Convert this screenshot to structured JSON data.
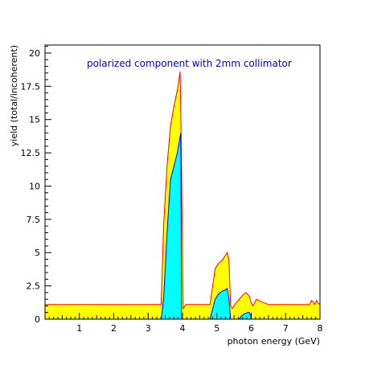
{
  "chart_data": {
    "type": "area",
    "title": "polarized component with 2mm collimator",
    "xlabel": "photon energy (GeV)",
    "ylabel": "yield (total/incoherent)",
    "xlim": [
      0,
      8
    ],
    "ylim": [
      0,
      20.6
    ],
    "x_ticks": [
      "1",
      "2",
      "3",
      "4",
      "5",
      "6",
      "7",
      "8"
    ],
    "y_ticks": [
      "0",
      "2.5",
      "5",
      "7.5",
      "10",
      "12.5",
      "15",
      "17.5",
      "20"
    ],
    "grid": false,
    "legend": "none",
    "colors": {
      "total_fill": "#ffff00",
      "total_edge": "#ff0000",
      "polarized_fill": "#00ffff",
      "polarized_edge": "#0000ff",
      "title": "#0000cc"
    },
    "series": [
      {
        "role": "total",
        "x": [
          0,
          3.38,
          3.45,
          3.55,
          3.65,
          3.75,
          3.85,
          3.93,
          3.96,
          4.02,
          4.1,
          4.8,
          4.85,
          4.95,
          5.05,
          5.15,
          5.25,
          5.3,
          5.35,
          5.4,
          5.45,
          5.5,
          5.55,
          5.65,
          5.75,
          5.85,
          5.95,
          6.0,
          6.05,
          6.15,
          6.3,
          6.5,
          7.7,
          7.75,
          7.8,
          7.85,
          7.9,
          7.95,
          8.0
        ],
        "y": [
          1.1,
          1.1,
          7.0,
          11.5,
          14.5,
          16.0,
          17.2,
          18.6,
          14.0,
          0.8,
          1.1,
          1.1,
          2.0,
          3.8,
          4.2,
          4.4,
          4.8,
          5.0,
          4.5,
          1.0,
          0.8,
          1.0,
          1.2,
          1.5,
          1.8,
          2.0,
          1.7,
          1.2,
          1.0,
          1.5,
          1.3,
          1.1,
          1.1,
          1.4,
          1.3,
          1.1,
          1.4,
          1.2,
          1.1
        ]
      },
      {
        "role": "polarized",
        "x": [
          0,
          3.38,
          3.45,
          3.55,
          3.65,
          3.75,
          3.85,
          3.95,
          3.97,
          4.1,
          4.8,
          4.85,
          4.95,
          5.05,
          5.15,
          5.25,
          5.3,
          5.35,
          5.4,
          5.65,
          5.7,
          5.8,
          5.9,
          5.95,
          6.0,
          6.3,
          8.0
        ],
        "y": [
          0,
          0,
          1.5,
          6.5,
          10.5,
          11.5,
          12.5,
          14.0,
          0.0,
          0,
          0,
          0.5,
          1.5,
          1.9,
          2.1,
          2.2,
          2.3,
          1.5,
          0.0,
          0,
          0.2,
          0.4,
          0.5,
          0.5,
          0.0,
          0,
          0
        ]
      }
    ]
  }
}
